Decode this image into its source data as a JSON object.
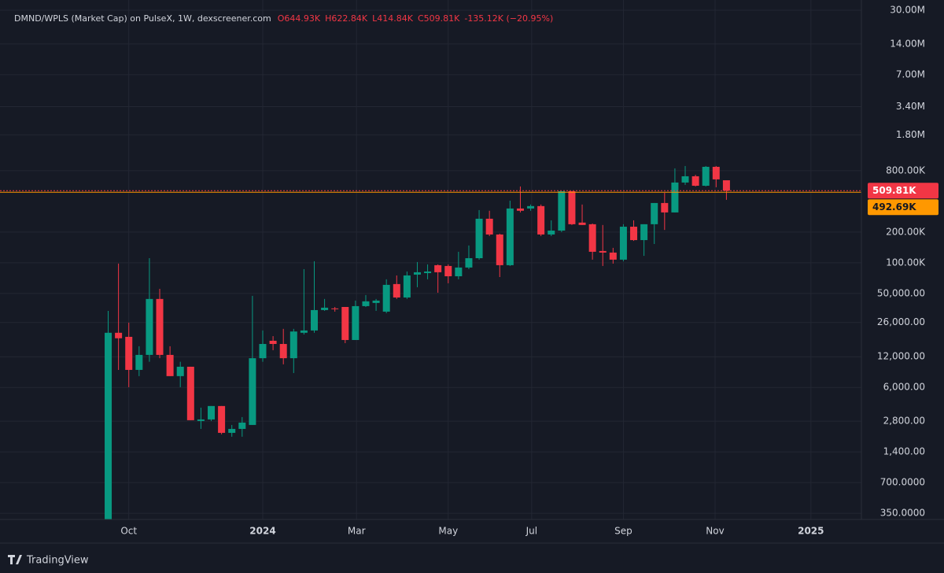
{
  "chart_data": {
    "type": "candlestick",
    "title": "DMND/WPLS (Market Cap) on PulseX, 1W, dexscreener.com",
    "header": {
      "open": "O644.93K",
      "high": "H622.84K",
      "low": "L414.84K",
      "close": "C509.81K",
      "change": "-135.12K (−20.95%)"
    },
    "up_color": "#089981",
    "down_color": "#f23645",
    "log_scale": true,
    "grid": true,
    "series": {
      "open": [
        305,
        20600,
        18800,
        8910,
        12500,
        44200,
        12500,
        7740,
        9570,
        2810,
        2910,
        3940,
        2150,
        2350,
        2570,
        11600,
        17200,
        16000,
        11600,
        20600,
        21700,
        34400,
        35700,
        36900,
        17500,
        37600,
        40400,
        33200,
        61900,
        45700,
        76600,
        79300,
        94800,
        93100,
        73800,
        89900,
        111000,
        270600,
        189600,
        94800,
        341000,
        341000,
        360000,
        189600,
        207000,
        504000,
        248000,
        239000,
        130600,
        126000,
        107400,
        226000,
        167000,
        239000,
        386000,
        312000,
        613000,
        706000,
        570000,
        874000,
        644930
      ],
      "high": [
        33800,
        98200,
        25900,
        15200,
        111000,
        55600,
        15200,
        10700,
        9570,
        3800,
        3940,
        3940,
        2570,
        3070,
        47400,
        21700,
        19100,
        22500,
        22500,
        86700,
        103600,
        44200,
        36900,
        36900,
        42600,
        48300,
        44200,
        68900,
        75200,
        82200,
        101800,
        96500,
        96500,
        96500,
        128300,
        147900,
        329000,
        324000,
        193000,
        407000,
        561000,
        373000,
        373000,
        261000,
        504000,
        504000,
        373000,
        243000,
        235000,
        140200,
        239000,
        261000,
        239000,
        386000,
        486000,
        844000,
        890000,
        730000,
        890000,
        890000,
        622840
      ],
      "low": [
        305,
        8910,
        6030,
        7740,
        10700,
        11600,
        7740,
        6030,
        2860,
        2350,
        2810,
        2080,
        1970,
        1970,
        2570,
        10700,
        13900,
        10100,
        8300,
        19800,
        20600,
        33800,
        33200,
        16300,
        17500,
        36900,
        33800,
        32100,
        44200,
        44200,
        57600,
        68900,
        50900,
        63000,
        68900,
        86700,
        107400,
        182900,
        72500,
        93100,
        312000,
        324000,
        182900,
        182900,
        200000,
        235000,
        235000,
        107400,
        93100,
        98200,
        103600,
        164000,
        117000,
        153000,
        210000,
        312000,
        581000,
        561000,
        561000,
        551000,
        414840
      ],
      "close": [
        20600,
        18200,
        8910,
        12500,
        44200,
        12500,
        7740,
        9570,
        2860,
        2910,
        3940,
        2150,
        2350,
        2710,
        11600,
        16000,
        16000,
        11600,
        21200,
        21700,
        34400,
        36300,
        35100,
        17500,
        37600,
        41900,
        42600,
        60800,
        45700,
        75200,
        80800,
        82200,
        80800,
        73800,
        89900,
        111000,
        270600,
        189600,
        94800,
        341000,
        324000,
        360000,
        189600,
        207000,
        504000,
        239000,
        235000,
        128300,
        126000,
        107400,
        226000,
        167000,
        239000,
        386000,
        312000,
        613000,
        706000,
        570000,
        874000,
        658000,
        509810
      ]
    },
    "ylim": [
      304,
      37800000
    ],
    "yticks": [
      {
        "value": 30000000,
        "label": "30.00M"
      },
      {
        "value": 14000000,
        "label": "14.00M"
      },
      {
        "value": 7000000,
        "label": "7.00M"
      },
      {
        "value": 3400000,
        "label": "3.40M"
      },
      {
        "value": 1800000,
        "label": "1.80M"
      },
      {
        "value": 800000,
        "label": "800.00K"
      },
      {
        "value": 200000,
        "label": "200.00K"
      },
      {
        "value": 100000,
        "label": "100.00K"
      },
      {
        "value": 50000,
        "label": "50,000.00"
      },
      {
        "value": 26000,
        "label": "26,000.00"
      },
      {
        "value": 12000,
        "label": "12,000.00"
      },
      {
        "value": 6000,
        "label": "6,000.00"
      },
      {
        "value": 2800,
        "label": "2,800.00"
      },
      {
        "value": 1400,
        "label": "1,400.00"
      },
      {
        "value": 700,
        "label": "700.0000"
      },
      {
        "value": 350,
        "label": "350.0000"
      }
    ],
    "xlim": [
      -10.5,
      73.1
    ],
    "xticks": [
      {
        "value": 2.0,
        "label": "Oct"
      },
      {
        "value": 15.0,
        "label": "2024"
      },
      {
        "value": 24.1,
        "label": "Mar"
      },
      {
        "value": 33.0,
        "label": "May"
      },
      {
        "value": 41.1,
        "label": "Jul"
      },
      {
        "value": 50.0,
        "label": "Sep"
      },
      {
        "value": 58.9,
        "label": "Nov"
      },
      {
        "value": 68.2,
        "label": "2025"
      }
    ],
    "price_lines": [
      {
        "value": 509810,
        "label": "509.81K",
        "color": "#f23645"
      },
      {
        "value": 492690,
        "label": "492.69K",
        "color": "#ff9800"
      }
    ]
  },
  "footer": {
    "brand": "TradingView"
  }
}
